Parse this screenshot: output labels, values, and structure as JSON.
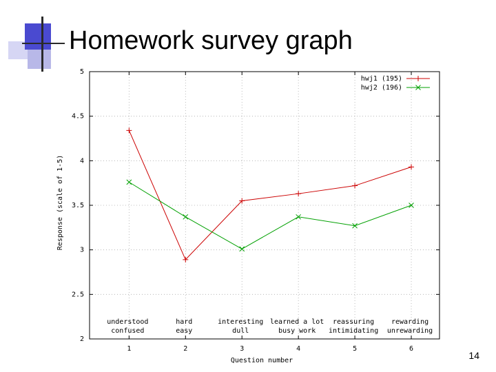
{
  "slide": {
    "title": "Homework survey graph",
    "page_number": "14"
  },
  "colors": {
    "accent": "#4a4ad0",
    "series1": "#cc0000",
    "series2": "#00a000"
  },
  "chart_data": {
    "type": "line",
    "title": "",
    "xlabel": "Question number",
    "ylabel": "Response (scale of 1-5)",
    "x": [
      1,
      2,
      3,
      4,
      5,
      6
    ],
    "xlim": [
      0.3,
      6.5
    ],
    "ylim": [
      2,
      5
    ],
    "yticks": [
      "2",
      "2.5",
      "3",
      "3.5",
      "4",
      "4.5",
      "5"
    ],
    "xticks": [
      "1",
      "2",
      "3",
      "4",
      "5",
      "6"
    ],
    "category_labels": [
      [
        "understood",
        "confused"
      ],
      [
        "hard",
        "easy"
      ],
      [
        "interesting",
        "dull"
      ],
      [
        "learned a lot",
        "busy work"
      ],
      [
        "reassuring",
        "intimidating"
      ],
      [
        "rewarding",
        "unrewarding"
      ]
    ],
    "grid": true,
    "legend_position": "top-right",
    "series": [
      {
        "name": "hwj1 (195)",
        "color": "#cc0000",
        "marker": "+",
        "values": [
          4.34,
          2.89,
          3.55,
          3.63,
          3.72,
          3.93
        ]
      },
      {
        "name": "hwj2 (196)",
        "color": "#00a000",
        "marker": "x",
        "values": [
          3.76,
          3.37,
          3.01,
          3.37,
          3.27,
          3.5
        ]
      }
    ]
  }
}
